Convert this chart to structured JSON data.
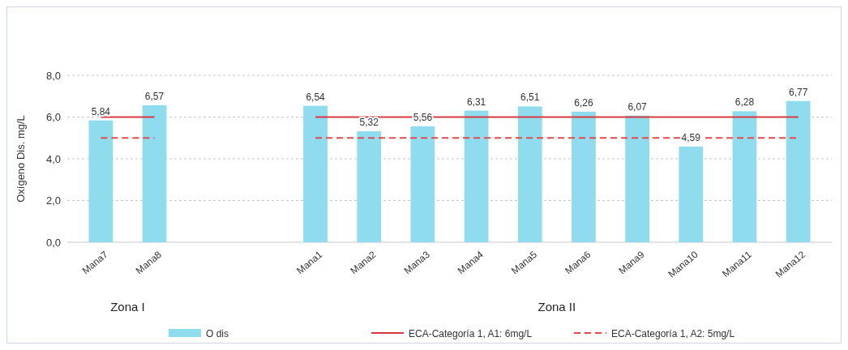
{
  "chart_data": {
    "type": "bar",
    "ylabel": "Oxígeno Dis. mg/L",
    "categories": [
      "Mana7",
      "Mana8",
      null,
      null,
      "Mana1",
      "Mana2",
      "Mana3",
      "Mana4",
      "Mana5",
      "Mana6",
      "Mana9",
      "Mana10",
      "Mana11",
      "Mana12"
    ],
    "series": [
      {
        "name": "O dis",
        "color": "#8fdcef",
        "values": [
          5.84,
          6.57,
          null,
          null,
          6.54,
          5.32,
          5.56,
          6.31,
          6.51,
          6.26,
          6.07,
          4.59,
          6.28,
          6.77
        ],
        "value_labels": [
          "5,84",
          "6,57",
          null,
          null,
          "6,54",
          "5,32",
          "5,56",
          "6,31",
          "6,51",
          "6,26",
          "6,07",
          "4,59",
          "6,28",
          "6,77"
        ]
      },
      {
        "name": "ECA-Categoría 1, A1: 6mg/L",
        "type": "line",
        "color": "#d9383f",
        "line_style": "solid",
        "values": [
          6,
          6,
          null,
          null,
          6,
          6,
          6,
          6,
          6,
          6,
          6,
          6,
          6,
          6
        ]
      },
      {
        "name": "ECA-Categoría 1, A2: 5mg/L",
        "type": "line",
        "color": "#e8474c",
        "line_style": "dashed",
        "values": [
          5,
          5,
          null,
          null,
          5,
          5,
          5,
          5,
          5,
          5,
          5,
          5,
          5,
          5
        ]
      }
    ],
    "ylim": [
      0,
      8
    ],
    "yticks": [
      {
        "value": 0,
        "label": "0,0"
      },
      {
        "value": 2,
        "label": "2,0"
      },
      {
        "value": 4,
        "label": "4,0"
      },
      {
        "value": 6,
        "label": "6,0"
      },
      {
        "value": 8,
        "label": "8,0"
      }
    ],
    "grid": "y",
    "legend": "bottom",
    "annotations": [
      "Zona I",
      "Zona II"
    ]
  }
}
